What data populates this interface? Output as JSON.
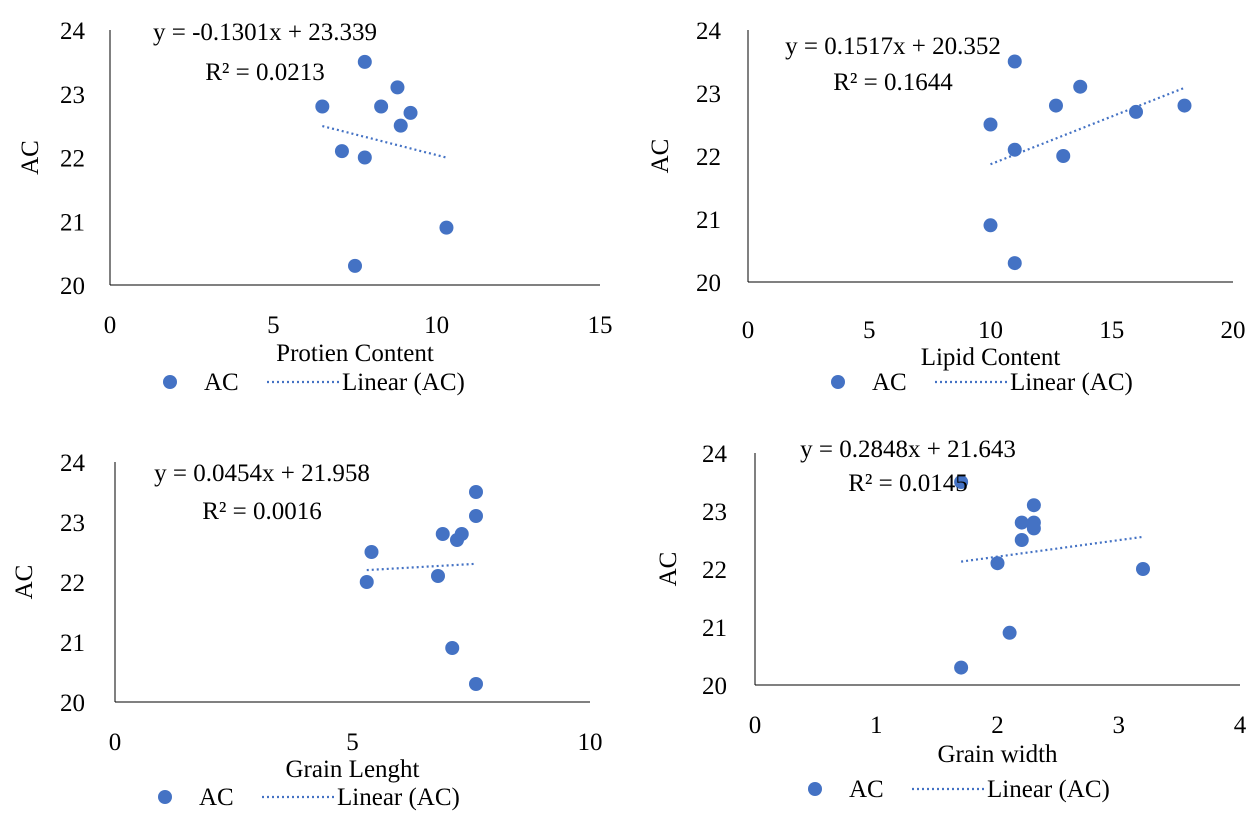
{
  "chart_data": [
    {
      "type": "scatter",
      "xlabel": "Protien Content",
      "ylabel": "AC",
      "xlim": [
        0,
        15
      ],
      "ylim": [
        20,
        24
      ],
      "xticks": [
        "0",
        "5",
        "10",
        "15"
      ],
      "yticks": [
        "20",
        "21",
        "22",
        "23",
        "24"
      ],
      "equation": "y = -0.1301x + 23.339",
      "r2": "R² = 0.0213",
      "legend": [
        "AC",
        "Linear (AC)"
      ],
      "legend_position": "bottom",
      "grid": false,
      "series": [
        {
          "name": "AC",
          "x": [
            7.8,
            8.8,
            6.5,
            8.3,
            9.2,
            8.9,
            7.1,
            7.8,
            10.3,
            7.5
          ],
          "y": [
            23.5,
            23.1,
            22.8,
            22.8,
            22.7,
            22.5,
            22.1,
            22.0,
            20.9,
            20.3
          ]
        }
      ],
      "trendline": {
        "name": "Linear (AC)",
        "slope": -0.1301,
        "intercept": 23.339,
        "x_range": [
          6.5,
          10.3
        ]
      }
    },
    {
      "type": "scatter",
      "xlabel": "Lipid Content",
      "ylabel": "AC",
      "xlim": [
        0,
        20
      ],
      "ylim": [
        20,
        24
      ],
      "xticks": [
        "0",
        "5",
        "10",
        "15",
        "20"
      ],
      "yticks": [
        "20",
        "21",
        "22",
        "23",
        "24"
      ],
      "equation": "y = 0.1517x + 20.352",
      "r2": "R² = 0.1644",
      "legend": [
        "AC",
        "Linear (AC)"
      ],
      "legend_position": "bottom",
      "grid": false,
      "series": [
        {
          "name": "AC",
          "x": [
            11,
            13.7,
            12.7,
            18,
            16,
            10,
            11,
            13,
            10,
            11
          ],
          "y": [
            23.5,
            23.1,
            22.8,
            22.8,
            22.7,
            22.5,
            22.1,
            22.0,
            20.9,
            20.3
          ]
        }
      ],
      "trendline": {
        "name": "Linear (AC)",
        "slope": 0.1517,
        "intercept": 20.352,
        "x_range": [
          10,
          18
        ]
      }
    },
    {
      "type": "scatter",
      "xlabel": "Grain Lenght",
      "ylabel": "AC",
      "xlim": [
        0,
        10
      ],
      "ylim": [
        20,
        24
      ],
      "xticks": [
        "0",
        "5",
        "10"
      ],
      "yticks": [
        "20",
        "21",
        "22",
        "23",
        "24"
      ],
      "equation": "y = 0.0454x + 21.958",
      "r2": "R² = 0.0016",
      "legend": [
        "AC",
        "Linear (AC)"
      ],
      "legend_position": "bottom",
      "grid": false,
      "series": [
        {
          "name": "AC",
          "x": [
            7.6,
            7.6,
            6.9,
            7.3,
            7.2,
            5.4,
            6.8,
            5.3,
            7.1,
            7.6
          ],
          "y": [
            23.5,
            23.1,
            22.8,
            22.8,
            22.7,
            22.5,
            22.1,
            22.0,
            20.9,
            20.3
          ]
        }
      ],
      "trendline": {
        "name": "Linear (AC)",
        "slope": 0.0454,
        "intercept": 21.958,
        "x_range": [
          5.3,
          7.6
        ]
      }
    },
    {
      "type": "scatter",
      "xlabel": "Grain width",
      "ylabel": "AC",
      "xlim": [
        0,
        4
      ],
      "ylim": [
        20,
        24
      ],
      "xticks": [
        "0",
        "1",
        "2",
        "3",
        "4"
      ],
      "yticks": [
        "20",
        "21",
        "22",
        "23",
        "24"
      ],
      "equation": "y = 0.2848x + 21.643",
      "r2": "R² = 0.0145",
      "legend": [
        "AC",
        "Linear (AC)"
      ],
      "legend_position": "bottom",
      "grid": false,
      "series": [
        {
          "name": "AC",
          "x": [
            1.7,
            2.3,
            2.2,
            2.3,
            2.3,
            2.2,
            2.0,
            3.2,
            2.1,
            1.7
          ],
          "y": [
            23.5,
            23.1,
            22.8,
            22.8,
            22.7,
            22.5,
            22.1,
            22.0,
            20.9,
            20.3
          ]
        }
      ],
      "trendline": {
        "name": "Linear (AC)",
        "slope": 0.2848,
        "intercept": 21.643,
        "x_range": [
          1.7,
          3.2
        ]
      }
    }
  ],
  "colors": {
    "marker": "#4472C4",
    "trendline": "#4472C4",
    "axis": "#000000"
  }
}
